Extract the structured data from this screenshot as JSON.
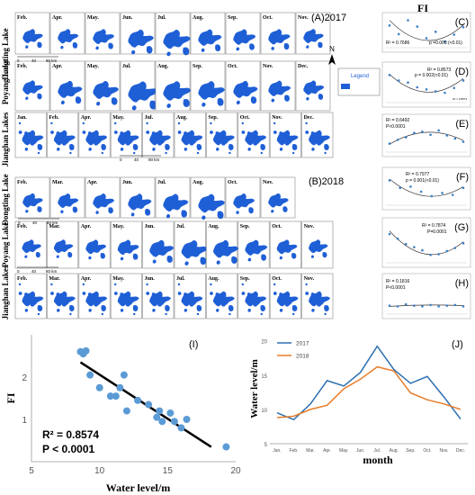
{
  "map_panels": {
    "label_2017": "(A)2017",
    "label_2018": "(B)2018",
    "row_labels": {
      "dongting": "Dongting Lake",
      "poyang": "Poyang Lake",
      "jianghan": "Jianghan Lakes"
    },
    "months_2017": {
      "dongting": [
        "Feb.",
        "Apr.",
        "May.",
        "Jun.",
        "Jul.",
        "Aug.",
        "Sep.",
        "Oct.",
        "Nov."
      ],
      "poyang": [
        "Feb.",
        "Apr.",
        "May.",
        "Jul.",
        "Aug.",
        "Sep.",
        "Oct.",
        "Nov.",
        "Dec."
      ],
      "jianghan": [
        "Jan.",
        "Feb.",
        "Apr.",
        "May.",
        "Jul.",
        "Aug.",
        "Sep.",
        "Oct.",
        "Nov.",
        "Dec."
      ]
    },
    "months_2018": {
      "dongting": [
        "Feb.",
        "Mar.",
        "Apr.",
        "Jun.",
        "Jul.",
        "Aug.",
        "Oct.",
        "Nov."
      ],
      "poyang": [
        "Feb.",
        "Mar.",
        "Apr.",
        "May.",
        "Jun.",
        "Jul.",
        "Aug.",
        "Sep.",
        "Oct.",
        "Nov."
      ],
      "jianghan": [
        "Feb.",
        "Mar.",
        "Apr.",
        "May.",
        "Jun.",
        "Jul.",
        "Aug.",
        "Sep.",
        "Oct.",
        "Nov."
      ]
    },
    "legend_title": "Legend",
    "legend_item": "water",
    "north_label": "N",
    "scale_labels": [
      "0",
      "40",
      "80 km"
    ],
    "water_color": "#1f5fd6"
  },
  "chart_data": [
    {
      "id": "C",
      "type": "scatter",
      "title": "FI",
      "panel": "(C)",
      "stats": [
        "R² = 0.7686",
        "p =0.009  (<0.01)"
      ],
      "points": [
        [
          1,
          0.74
        ],
        [
          2,
          0.44
        ],
        [
          3,
          0.92
        ],
        [
          4,
          0.7
        ],
        [
          5,
          0.3
        ],
        [
          6,
          0.52
        ],
        [
          7,
          0.18
        ],
        [
          8,
          0.42
        ],
        [
          9,
          0.68
        ]
      ],
      "fit": [
        0.92,
        0.22,
        0.76
      ]
    },
    {
      "id": "D",
      "type": "scatter",
      "panel": "(D)",
      "stats": [
        "R² = 0.8573",
        "p = 0.002(<0.01)"
      ],
      "fit_label": "R² = 0.8573",
      "points": [
        [
          1,
          0.78
        ],
        [
          2,
          0.62
        ],
        [
          3,
          0.56
        ],
        [
          4,
          0.42
        ],
        [
          5,
          0.36
        ],
        [
          6,
          0.3
        ],
        [
          7,
          0.26
        ],
        [
          8,
          0.4
        ],
        [
          9,
          0.62
        ]
      ],
      "fit": [
        0.8,
        0.28,
        0.68
      ]
    },
    {
      "id": "E",
      "type": "scatter",
      "panel": "(E)",
      "stats": [
        "R² = 0.6492",
        "P<0.0001"
      ],
      "points": [
        [
          1,
          0.24
        ],
        [
          2,
          0.36
        ],
        [
          3,
          0.44
        ],
        [
          4,
          0.58
        ],
        [
          5,
          0.62
        ],
        [
          6,
          0.52
        ],
        [
          7,
          0.66
        ],
        [
          8,
          0.5
        ],
        [
          9,
          0.4
        ],
        [
          10,
          0.3
        ]
      ],
      "fit": [
        0.22,
        0.6,
        0.34
      ]
    },
    {
      "id": "F",
      "type": "scatter",
      "panel": "(F)",
      "stats": [
        "R² = 0.7977",
        "p = 0.001(<0.01)"
      ],
      "points": [
        [
          1,
          0.76
        ],
        [
          2,
          0.52
        ],
        [
          3,
          0.56
        ],
        [
          4,
          0.4
        ],
        [
          5,
          0.26
        ],
        [
          6,
          0.36
        ],
        [
          7,
          0.3
        ],
        [
          8,
          0.52
        ]
      ],
      "fit": [
        0.8,
        0.26,
        0.56
      ]
    },
    {
      "id": "G",
      "type": "scatter",
      "panel": "(G)",
      "stats": [
        "R² = 0.7874",
        "P=0.0001"
      ],
      "points": [
        [
          1,
          0.72
        ],
        [
          2,
          0.6
        ],
        [
          3,
          0.46
        ],
        [
          4,
          0.38
        ],
        [
          5,
          0.3
        ],
        [
          6,
          0.18
        ],
        [
          7,
          0.2
        ],
        [
          8,
          0.28
        ],
        [
          9,
          0.36
        ],
        [
          10,
          0.48
        ]
      ],
      "fit": [
        0.8,
        0.2,
        0.52
      ]
    },
    {
      "id": "H",
      "type": "scatter",
      "panel": "(H)",
      "stats": [
        "R² = 0.1816",
        "P<0.0001"
      ],
      "points": [
        [
          1,
          0.22
        ],
        [
          2,
          0.2
        ],
        [
          3,
          0.26
        ],
        [
          4,
          0.22
        ],
        [
          5,
          0.2
        ],
        [
          6,
          0.24
        ],
        [
          7,
          0.2
        ],
        [
          8,
          0.22
        ],
        [
          9,
          0.24
        ],
        [
          10,
          0.2
        ]
      ],
      "fit": [
        0.2,
        0.24,
        0.22
      ]
    },
    {
      "id": "I",
      "type": "scatter",
      "panel": "(I)",
      "xlabel": "Water  level/m",
      "ylabel": "FI",
      "xlim": [
        5,
        20
      ],
      "ylim": [
        0,
        3
      ],
      "xticks": [
        5,
        10,
        15,
        20
      ],
      "yticks": [
        1,
        2
      ],
      "stats": [
        "R² = 0.8574",
        "P < 0.0001"
      ],
      "points": [
        [
          8.6,
          2.6
        ],
        [
          8.8,
          2.55
        ],
        [
          9.0,
          2.62
        ],
        [
          9.3,
          2.05
        ],
        [
          10.0,
          1.75
        ],
        [
          10.8,
          1.55
        ],
        [
          11.2,
          1.55
        ],
        [
          11.5,
          1.75
        ],
        [
          11.8,
          2.05
        ],
        [
          12.0,
          1.2
        ],
        [
          12.8,
          1.45
        ],
        [
          13.6,
          1.35
        ],
        [
          14.2,
          1.05
        ],
        [
          14.4,
          1.2
        ],
        [
          14.6,
          0.95
        ],
        [
          15.2,
          1.15
        ],
        [
          15.5,
          0.95
        ],
        [
          16.0,
          0.8
        ],
        [
          16.4,
          1.0
        ],
        [
          19.3,
          0.35
        ]
      ],
      "fit_line": [
        [
          8.6,
          2.35
        ],
        [
          18.2,
          0.35
        ]
      ]
    },
    {
      "id": "J",
      "type": "line",
      "panel": "(J)",
      "xlabel": "month",
      "ylabel": "Water  level/m",
      "categories": [
        "Jan.",
        "Feb.",
        "Mar.",
        "Apr.",
        "May.",
        "Jun.",
        "Jul.",
        "Aug.",
        "Sep.",
        "Oct.",
        "Nov.",
        "Dec."
      ],
      "ylim": [
        5,
        21
      ],
      "yticks": [
        5,
        10,
        15,
        20
      ],
      "series": [
        {
          "name": "2017",
          "color": "#2c6fb0",
          "values": [
            9.5,
            8.5,
            10.8,
            14.2,
            13.4,
            15.4,
            19.2,
            15.8,
            13.8,
            14.8,
            11.8,
            8.6
          ]
        },
        {
          "name": "2018",
          "color": "#e87d2a",
          "values": [
            8.8,
            9.0,
            10.0,
            10.6,
            13.0,
            14.4,
            16.2,
            15.6,
            12.4,
            11.4,
            10.8,
            10.0
          ]
        }
      ]
    }
  ]
}
